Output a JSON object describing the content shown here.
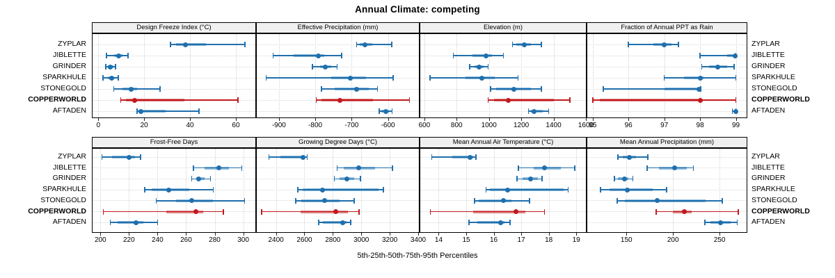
{
  "title": "Annual Climate: competing",
  "caption": "5th-25th-50th-75th-95th Percentiles",
  "categories": [
    "ZYPLAR",
    "JIBLETTE",
    "GRINDER",
    "SPARKHULE",
    "STONEGOLD",
    "COPPERWORLD",
    "AFTADEN"
  ],
  "highlight_category": "COPPERWORLD",
  "colors": {
    "series": "#1f6fad",
    "series_light": "#8ab8d9",
    "highlight": "#c2191d",
    "highlight_light": "#de8486",
    "gridline": "#d2d2d2",
    "strip_bg": "#f0f0f0",
    "panel_border": "#000000"
  },
  "chart_data": {
    "type": "dotplot-intervals",
    "percentiles": [
      5,
      25,
      50,
      75,
      95
    ],
    "row_order": "top-to-bottom matches categories",
    "panels": [
      {
        "title": "Design Freeze Index (°C)",
        "grid_row": 1,
        "domain": [
          -2.5,
          68.5
        ],
        "ticks": [
          0,
          20,
          40,
          60
        ],
        "values": [
          [
            31.5,
            34,
            38,
            47,
            64
          ],
          [
            3.5,
            7,
            9,
            10.5,
            13
          ],
          [
            3.2,
            4.2,
            5.2,
            6.6,
            7.5
          ],
          [
            2.0,
            4.3,
            5.8,
            6.9,
            8.7
          ],
          [
            6.8,
            10.5,
            14.3,
            17,
            27
          ],
          [
            9.8,
            12,
            15.8,
            37.5,
            61
          ],
          [
            17,
            17.5,
            18.6,
            29.5,
            44
          ]
        ]
      },
      {
        "title": "Effective Precipitation (mm)",
        "grid_row": 1,
        "domain": [
          -961,
          -515
        ],
        "ticks": [
          -900,
          -800,
          -700,
          -600
        ],
        "values": [
          [
            -686,
            -678,
            -664,
            -643,
            -590
          ],
          [
            -916,
            -859,
            -791,
            -775,
            -727
          ],
          [
            -808,
            -786,
            -772,
            -757,
            -740
          ],
          [
            -935,
            -757,
            -704,
            -660,
            -586
          ],
          [
            -783,
            -746,
            -687,
            -652,
            -629
          ],
          [
            -797,
            -783,
            -733,
            -642,
            -541
          ],
          [
            -624,
            -619,
            -605,
            -597,
            -589
          ]
        ]
      },
      {
        "title": "Elevation (m)",
        "grid_row": 1,
        "domain": [
          575,
          1600
        ],
        "ticks": [
          600,
          800,
          1000,
          1200,
          1400,
          1600
        ],
        "values": [
          [
            1145,
            1170,
            1220,
            1260,
            1325
          ],
          [
            780,
            900,
            980,
            1020,
            1090
          ],
          [
            880,
            910,
            940,
            965,
            995
          ],
          [
            635,
            855,
            955,
            1035,
            1180
          ],
          [
            1010,
            1045,
            1155,
            1260,
            1325
          ],
          [
            995,
            1030,
            1120,
            1400,
            1500
          ],
          [
            1245,
            1260,
            1280,
            1335,
            1370
          ]
        ]
      },
      {
        "title": "Fraction of Annual PPT as Rain",
        "grid_row": 1,
        "domain": [
          94.85,
          99.3
        ],
        "ticks": [
          95,
          96,
          97,
          98,
          99
        ],
        "values": [
          [
            96.0,
            96.7,
            97.0,
            97.2,
            97.4
          ],
          [
            98.0,
            98.75,
            98.97,
            99.0,
            99.0
          ],
          [
            98.05,
            98.25,
            98.5,
            98.75,
            98.95
          ],
          [
            97.0,
            97.55,
            98.0,
            98.1,
            99.0
          ],
          [
            95.3,
            97.0,
            97.97,
            98.0,
            98.02
          ],
          [
            95.0,
            95.2,
            98.0,
            98.05,
            99.0
          ],
          [
            98.9,
            98.95,
            99.0,
            99.0,
            99.0
          ]
        ]
      },
      {
        "title": "Frost-Free Days",
        "grid_row": 2,
        "domain": [
          194.5,
          308.5
        ],
        "ticks": [
          200,
          220,
          240,
          260,
          280,
          300
        ],
        "values": [
          [
            201,
            208,
            220,
            224,
            228
          ],
          [
            265,
            273,
            283,
            290,
            299
          ],
          [
            264,
            267,
            269,
            273,
            277
          ],
          [
            231,
            236,
            248,
            262,
            279
          ],
          [
            239,
            253,
            264,
            279,
            301
          ],
          [
            202,
            246,
            267,
            272,
            286
          ],
          [
            207,
            212,
            225,
            230,
            240
          ]
        ]
      },
      {
        "title": "Growing Degree Days (°C)",
        "grid_row": 2,
        "domain": [
          2265,
          3405
        ],
        "ticks": [
          2400,
          2600,
          2800,
          3000,
          3200,
          3400
        ],
        "values": [
          [
            2350,
            2430,
            2590,
            2605,
            2620
          ],
          [
            2830,
            2875,
            2980,
            3095,
            3220
          ],
          [
            2810,
            2845,
            2900,
            2950,
            2995
          ],
          [
            2555,
            2590,
            2725,
            3120,
            3155
          ],
          [
            2540,
            2580,
            2740,
            2845,
            2950
          ],
          [
            2300,
            2575,
            2820,
            2905,
            2985
          ],
          [
            2700,
            2730,
            2870,
            2895,
            2925
          ]
        ]
      },
      {
        "title": "Mean Annual Air Temperature (°C)",
        "grid_row": 2,
        "domain": [
          13.33,
          19.35
        ],
        "ticks": [
          14,
          15,
          16,
          17,
          18,
          19
        ],
        "values": [
          [
            13.75,
            14.5,
            15.15,
            15.25,
            15.35
          ],
          [
            16.9,
            17.45,
            17.85,
            18.45,
            18.95
          ],
          [
            16.85,
            17.05,
            17.35,
            17.6,
            17.75
          ],
          [
            15.72,
            15.85,
            16.5,
            18.55,
            18.7
          ],
          [
            15.3,
            15.45,
            16.35,
            16.65,
            17.3
          ],
          [
            13.7,
            15.25,
            16.8,
            17.15,
            17.85
          ],
          [
            15.1,
            15.4,
            16.25,
            16.4,
            16.6
          ]
        ]
      },
      {
        "title": "Mean Annual Precipitation (mm)",
        "grid_row": 2,
        "domain": [
          108,
          279
        ],
        "ticks": [
          150,
          200,
          250
        ],
        "values": [
          [
            141,
            146,
            153,
            160,
            173
          ],
          [
            172,
            185,
            202,
            215,
            222
          ],
          [
            137,
            141,
            148,
            152,
            157
          ],
          [
            122,
            132,
            151,
            178,
            193
          ],
          [
            140,
            148,
            183,
            235,
            253
          ],
          [
            182,
            200,
            212,
            220,
            270
          ],
          [
            234,
            240,
            251,
            262,
            269
          ]
        ]
      }
    ]
  }
}
